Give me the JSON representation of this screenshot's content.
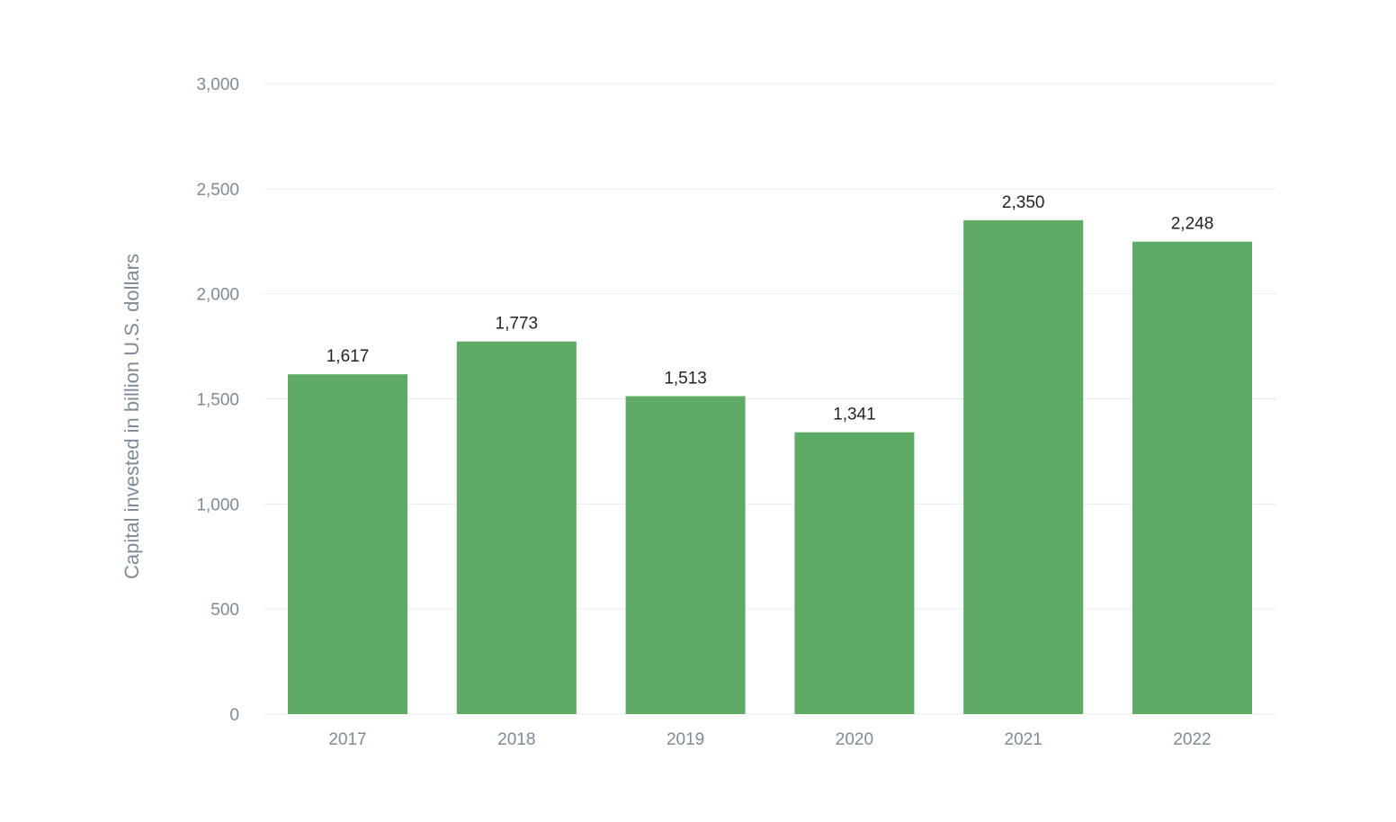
{
  "chart_data": {
    "type": "bar",
    "categories": [
      "2017",
      "2018",
      "2019",
      "2020",
      "2021",
      "2022"
    ],
    "values": [
      1617,
      1773,
      1513,
      1341,
      2350,
      2248
    ],
    "data_labels": [
      "1,617",
      "1,773",
      "1,513",
      "1,341",
      "2,350",
      "2,248"
    ],
    "ylabel": "Capital invested in billion U.S. dollars",
    "ylim": [
      0,
      3000
    ],
    "yticks": [
      0,
      500,
      1000,
      1500,
      2000,
      2500,
      3000
    ],
    "ytick_labels": [
      "0",
      "500",
      "1,000",
      "1,500",
      "2,000",
      "2,500",
      "3,000"
    ],
    "grid": true,
    "bar_color": "#5fab66"
  }
}
